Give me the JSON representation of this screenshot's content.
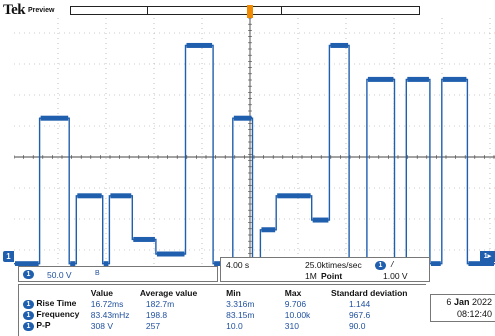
{
  "header": {
    "brand": "Tek",
    "mode": "Preview"
  },
  "channel1": {
    "marker": "1",
    "scale": "50.0 V",
    "coupling_symbol": "B",
    "right_marker": "1▸"
  },
  "timebase": {
    "scale": "4.00 s",
    "sample_rate": "25.0ktimes/sec",
    "record_length": "1M",
    "record_length_label": "Point",
    "trigger_source": "1",
    "trigger_slope_symbol": "/",
    "trigger_level": "1.00 V"
  },
  "waveform": {
    "color": "#1f5fae",
    "levels_divisions": [
      -2.2,
      0.8,
      -0.8,
      -1.7,
      -2.0,
      2.3,
      0.8,
      -1.5,
      0.0,
      2.3,
      1.6,
      1.6,
      1.6,
      -2.2
    ],
    "segments": [
      {
        "t0": 0.0,
        "t1": 0.65,
        "v": -2.2
      },
      {
        "t0": 0.65,
        "t1": 1.4,
        "v": 0.8
      },
      {
        "t0": 1.4,
        "t1": 1.58,
        "v": -2.2
      },
      {
        "t0": 1.58,
        "t1": 2.25,
        "v": -0.8
      },
      {
        "t0": 2.25,
        "t1": 2.42,
        "v": -2.2
      },
      {
        "t0": 2.42,
        "t1": 3.0,
        "v": -0.8
      },
      {
        "t0": 3.0,
        "t1": 3.6,
        "v": -1.7
      },
      {
        "t0": 3.6,
        "t1": 4.35,
        "v": -2.0
      },
      {
        "t0": 4.35,
        "t1": 5.05,
        "v": 2.3
      },
      {
        "t0": 5.05,
        "t1": 5.55,
        "v": -2.2
      },
      {
        "t0": 5.55,
        "t1": 6.05,
        "v": 0.8
      },
      {
        "t0": 6.05,
        "t1": 6.25,
        "v": -2.2
      },
      {
        "t0": 6.25,
        "t1": 6.65,
        "v": -1.5
      },
      {
        "t0": 6.65,
        "t1": 7.55,
        "v": -0.8
      },
      {
        "t0": 7.55,
        "t1": 8.0,
        "v": -1.3
      },
      {
        "t0": 8.0,
        "t1": 8.5,
        "v": 2.3
      },
      {
        "t0": 8.5,
        "t1": 8.95,
        "v": -2.2
      },
      {
        "t0": 8.95,
        "t1": 9.65,
        "v": 1.6
      },
      {
        "t0": 9.65,
        "t1": 9.95,
        "v": -2.2
      },
      {
        "t0": 9.95,
        "t1": 10.55,
        "v": 1.6
      },
      {
        "t0": 10.55,
        "t1": 10.85,
        "v": -2.2
      },
      {
        "t0": 10.85,
        "t1": 11.5,
        "v": 1.6
      },
      {
        "t0": 11.5,
        "t1": 12.2,
        "v": -2.2
      }
    ]
  },
  "measurements": {
    "headers": [
      "",
      "Value",
      "Average value",
      "Min",
      "Max",
      "Standard deviation"
    ],
    "rows": [
      {
        "badge": "1",
        "label": "Rise Time",
        "value": "16.72ms",
        "avg": "182.7m",
        "min": "3.316m",
        "max": "9.706",
        "std": "1.144"
      },
      {
        "badge": "1",
        "label": "Frequency",
        "value": "83.43mHz",
        "avg": "198.8",
        "min": "83.15m",
        "max": "10.00k",
        "std": "967.6"
      },
      {
        "badge": "1",
        "label": "P-P",
        "value": "308 V",
        "avg": "257",
        "min": "10.0",
        "max": "310",
        "std": "90.0"
      }
    ]
  },
  "datetime": {
    "day": "6",
    "month": "Jan",
    "year": "2022",
    "time": "08:12:40"
  }
}
